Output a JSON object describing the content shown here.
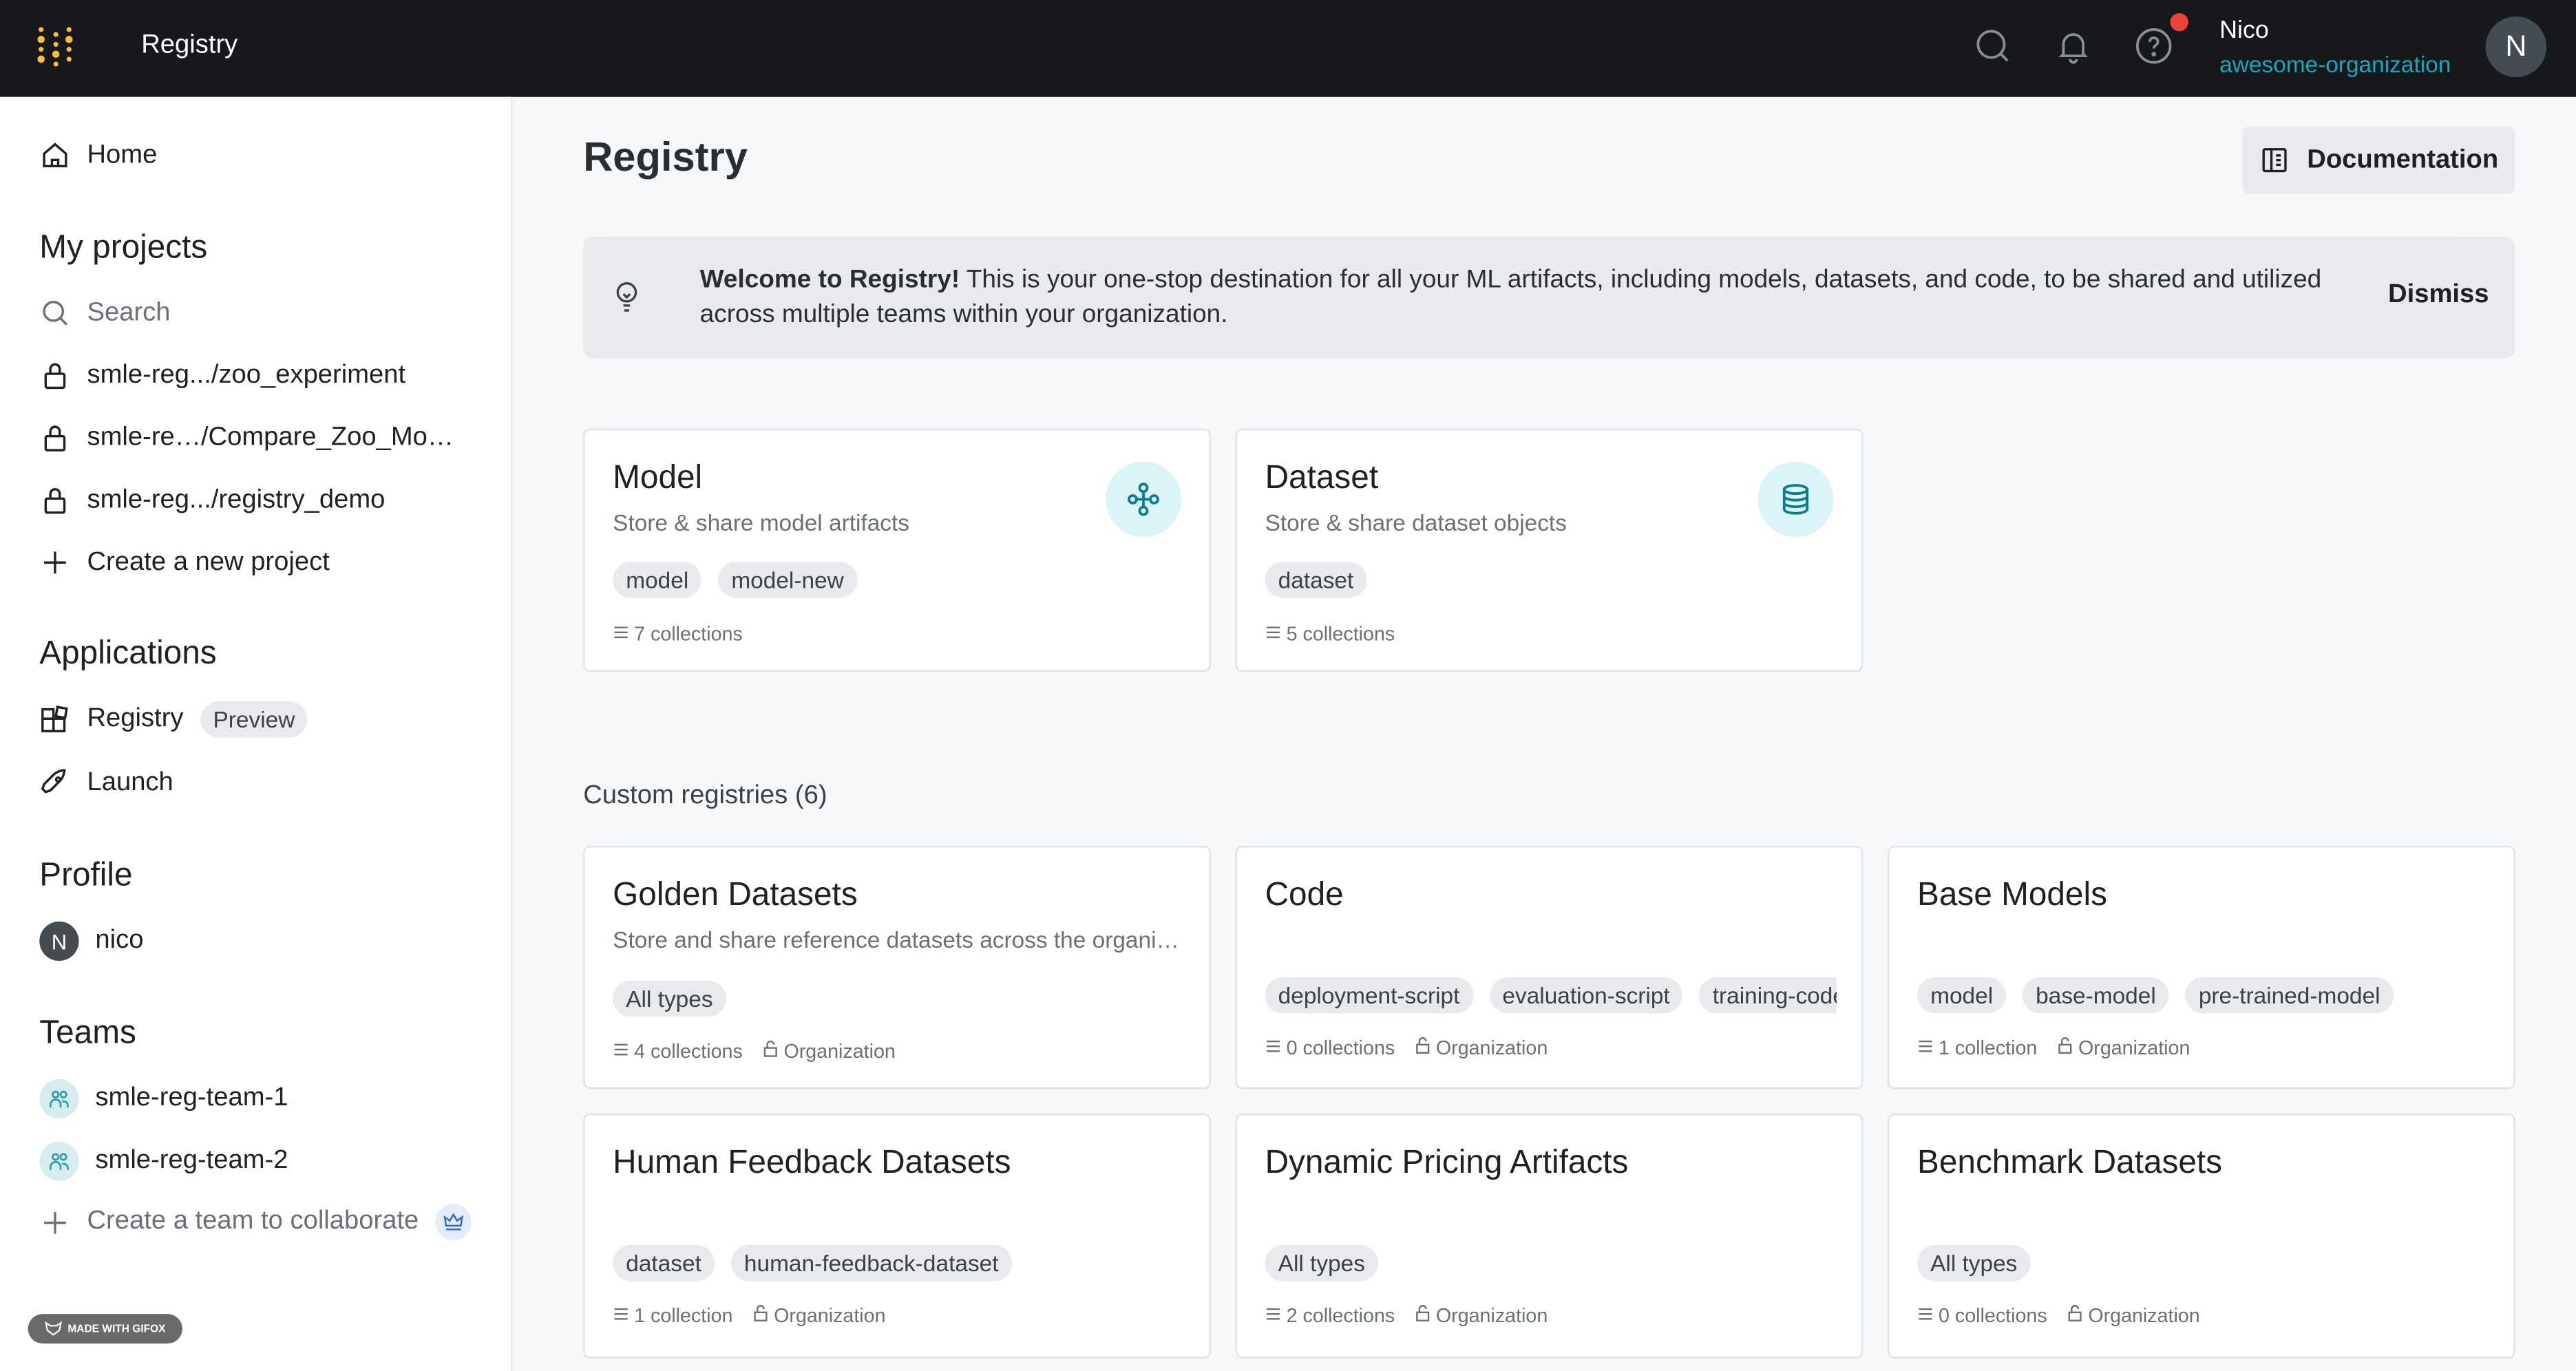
{
  "topbar": {
    "title": "Registry",
    "user_name": "Nico",
    "org": "awesome-organization",
    "avatar_initial": "N",
    "icons": [
      "search-icon",
      "bell-icon",
      "help-icon"
    ],
    "accent": "#13a9ba"
  },
  "sidebar": {
    "home": "Home",
    "my_projects": "My projects",
    "search_placeholder": "Search",
    "projects": [
      "smle-reg.../zoo_experiment",
      "smle-re…/Compare_Zoo_Mo…",
      "smle-reg.../registry_demo"
    ],
    "create_project": "Create a new project",
    "applications": "Applications",
    "registry": "Registry",
    "preview": "Preview",
    "launch": "Launch",
    "profile": "Profile",
    "profile_initial": "N",
    "profile_name": "nico",
    "teams": "Teams",
    "team_items": [
      "smle-reg-team-1",
      "smle-reg-team-2"
    ],
    "create_team": "Create a team to collaborate",
    "gifox": "MADE WITH GIFOX"
  },
  "main": {
    "title": "Registry",
    "doc_button": "Documentation",
    "banner": {
      "bold": "Welcome to Registry!",
      "text": " This is your one-stop destination for all your ML artifacts, including models, datasets, and code, to be shared and utilized across multiple teams within your organization.",
      "dismiss": "Dismiss"
    },
    "core": [
      {
        "title": "Model",
        "desc": "Store & share model artifacts",
        "tags": [
          "model",
          "model-new"
        ],
        "count": "7 collections",
        "icon": "model-network-icon"
      },
      {
        "title": "Dataset",
        "desc": "Store & share dataset objects",
        "tags": [
          "dataset"
        ],
        "count": "5 collections",
        "icon": "database-icon"
      }
    ],
    "custom_label": "Custom registries (6)",
    "custom": [
      {
        "title": "Golden Datasets",
        "desc": "Store and share reference datasets across the organization",
        "tags": [
          "All types"
        ],
        "count": "4 collections",
        "visibility": "Organization"
      },
      {
        "title": "Code",
        "desc": "",
        "tags": [
          "deployment-script",
          "evaluation-script",
          "training-code"
        ],
        "count": "0 collections",
        "visibility": "Organization"
      },
      {
        "title": "Base Models",
        "desc": "",
        "tags": [
          "model",
          "base-model",
          "pre-trained-model"
        ],
        "count": "1 collection",
        "visibility": "Organization"
      },
      {
        "title": "Human Feedback Datasets",
        "desc": "",
        "tags": [
          "dataset",
          "human-feedback-dataset"
        ],
        "count": "1 collection",
        "visibility": "Organization"
      },
      {
        "title": "Dynamic Pricing Artifacts",
        "desc": "",
        "tags": [
          "All types"
        ],
        "count": "2 collections",
        "visibility": "Organization"
      },
      {
        "title": "Benchmark Datasets",
        "desc": "",
        "tags": [
          "All types"
        ],
        "count": "0 collections",
        "visibility": "Organization"
      }
    ]
  }
}
